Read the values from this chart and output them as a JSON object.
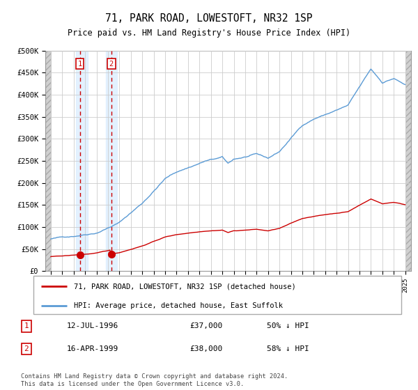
{
  "title": "71, PARK ROAD, LOWESTOFT, NR32 1SP",
  "subtitle": "Price paid vs. HM Land Registry's House Price Index (HPI)",
  "ylim": [
    0,
    500000
  ],
  "yticks": [
    0,
    50000,
    100000,
    150000,
    200000,
    250000,
    300000,
    350000,
    400000,
    450000,
    500000
  ],
  "ytick_labels": [
    "£0",
    "£50K",
    "£100K",
    "£150K",
    "£200K",
    "£250K",
    "£300K",
    "£350K",
    "£400K",
    "£450K",
    "£500K"
  ],
  "hpi_color": "#5b9bd5",
  "price_color": "#cc0000",
  "sale1_date_num": 1996.54,
  "sale1_price": 37000,
  "sale2_date_num": 1999.29,
  "sale2_price": 38000,
  "legend_label_red": "71, PARK ROAD, LOWESTOFT, NR32 1SP (detached house)",
  "legend_label_blue": "HPI: Average price, detached house, East Suffolk",
  "table_entries": [
    {
      "num": "1",
      "date": "12-JUL-1996",
      "price": "£37,000",
      "hpi": "50% ↓ HPI"
    },
    {
      "num": "2",
      "date": "16-APR-1999",
      "price": "£38,000",
      "hpi": "58% ↓ HPI"
    }
  ],
  "footer": "Contains HM Land Registry data © Crown copyright and database right 2024.\nThis data is licensed under the Open Government Licence v3.0.",
  "shade_color": "#ddeeff",
  "grid_color": "#cccccc",
  "xlim_start": 1993.5,
  "xlim_end": 2025.5
}
